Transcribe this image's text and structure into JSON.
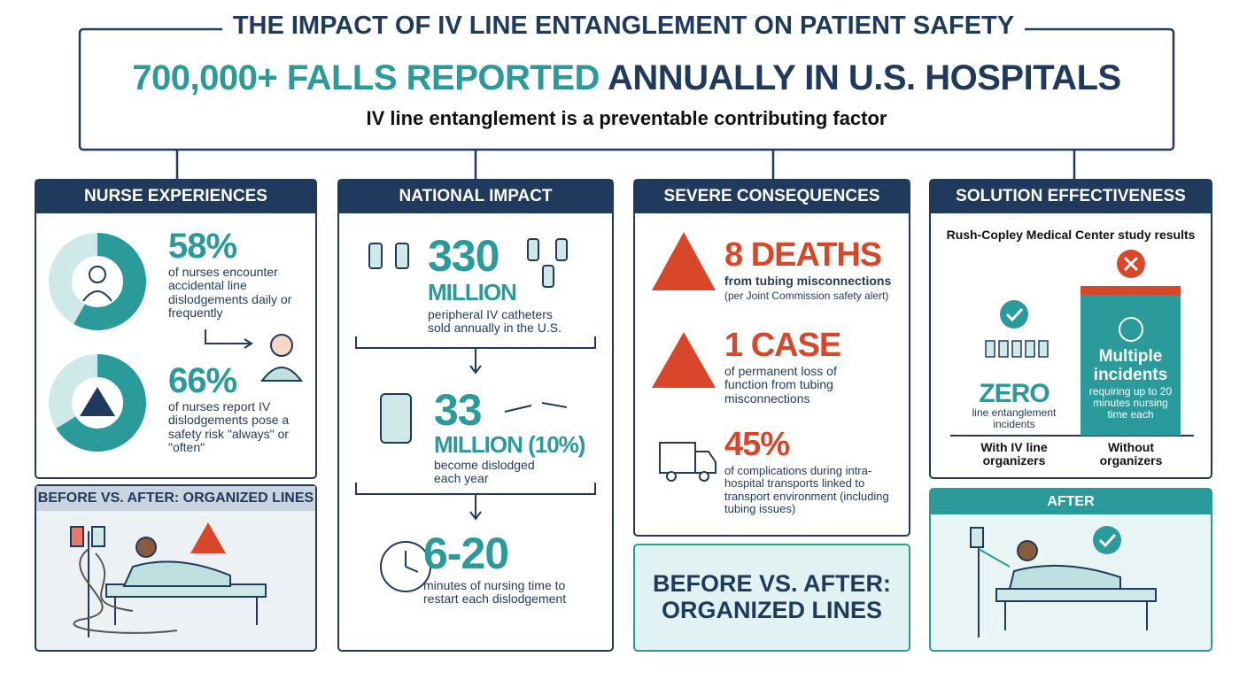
{
  "header": {
    "title": "THE IMPACT OF IV LINE ENTANGLEMENT ON PATIENT SAFETY",
    "headline_highlight": "700,000+ FALLS REPORTED",
    "headline_rest": "ANNUALLY IN U.S. HOSPITALS",
    "subtitle": "IV line entanglement is a preventable contributing factor"
  },
  "nurse_experiences": {
    "title": "NURSE EXPERIENCES",
    "stats": [
      {
        "value": 58,
        "label": "58%",
        "description": "of nurses encounter accidental line dislodgements daily or frequently"
      },
      {
        "value": 66,
        "label": "66%",
        "description": "of nurses report IV dislodgements pose a safety risk \"always\" or \"often\""
      }
    ]
  },
  "before_after_left": {
    "title": "BEFORE VS. AFTER: ORGANIZED LINES"
  },
  "national_impact": {
    "title": "NATIONAL IMPACT",
    "stats": [
      {
        "number": "330",
        "unit": "MILLION",
        "description": "peripheral IV catheters sold annually in the U.S."
      },
      {
        "number": "33",
        "unit": "MILLION (10%)",
        "description": "become dislodged each year"
      },
      {
        "number": "6-20",
        "description": "minutes of nursing time to restart each dislodgement"
      }
    ]
  },
  "severe_consequences": {
    "title": "SEVERE CONSEQUENCES",
    "items": [
      {
        "headline": "8 DEATHS",
        "description": "from tubing misconnections",
        "note": "(per Joint Commission safety alert)"
      },
      {
        "headline": "1 CASE",
        "description": "of permanent loss of function from tubing misconnections"
      },
      {
        "headline": "45%",
        "description": "of complications during intra-hospital transports linked to transport environment (including tubing issues)"
      }
    ]
  },
  "banner": {
    "text": "BEFORE VS. AFTER: ORGANIZED LINES"
  },
  "solution_effectiveness": {
    "title": "SOLUTION EFFECTIVENESS",
    "study": "Rush-Copley Medical Center study results",
    "with": {
      "result": "ZERO",
      "detail": "line entanglement incidents",
      "label": "With IV line organizers"
    },
    "without": {
      "result": "Multiple incidents",
      "detail": "requiring up to 20 minutes nursing time each",
      "label": "Without organizers"
    }
  },
  "after_panel": {
    "title": "AFTER"
  }
}
